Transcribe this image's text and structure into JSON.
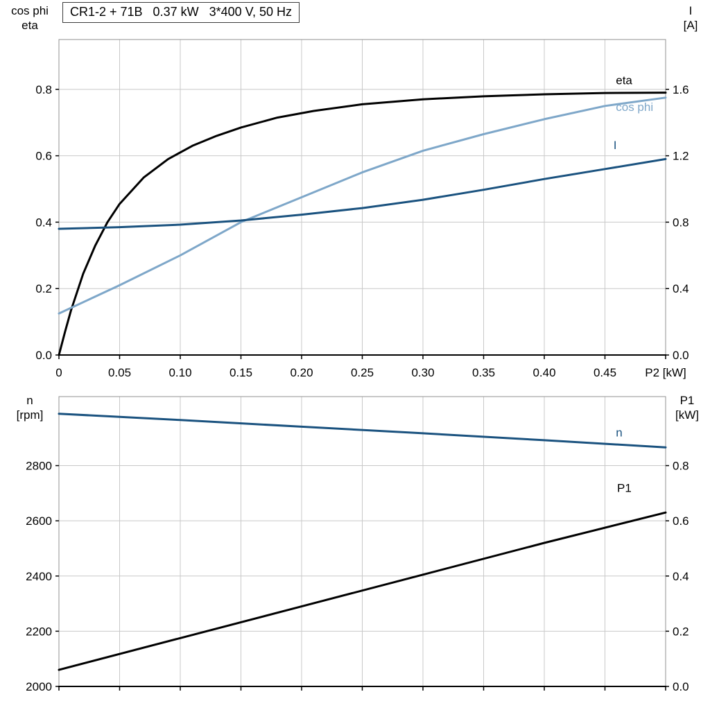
{
  "title_box": {
    "text": "CR1-2 + 71B   0.37 kW   3*400 V, 50 Hz"
  },
  "colors": {
    "black": "#000000",
    "light_blue": "#7ea7c9",
    "dark_blue": "#1a527f",
    "grid": "#c8c8c8",
    "frame": "#909090",
    "axis": "#000000"
  },
  "axis_corner_labels": {
    "top_left": [
      "cos phi",
      "eta"
    ],
    "top_right": [
      "I",
      "[A]"
    ],
    "bottom_left": [
      "n",
      "[rpm]"
    ],
    "bottom_right": [
      "P1",
      "[kW]"
    ]
  },
  "chart_data": [
    {
      "type": "line",
      "title": "CR1-2 + 71B   0.37 kW   3*400 V, 50 Hz",
      "grid": true,
      "legend_position": "end-of-line labels",
      "x_axis": {
        "label": "P2 [kW]",
        "range": [
          0,
          0.5
        ],
        "tick_values": [
          0,
          0.05,
          0.1,
          0.15,
          0.2,
          0.25,
          0.3,
          0.35,
          0.4,
          0.45,
          0.5
        ],
        "tick_labels": [
          "0",
          "0.05",
          "0.10",
          "0.15",
          "0.20",
          "0.25",
          "0.30",
          "0.35",
          "0.40",
          "0.45",
          "P2 [kW]"
        ]
      },
      "y_left": {
        "label": "cos phi / eta",
        "range": [
          0,
          0.95
        ],
        "tick_values": [
          0,
          0.2,
          0.4,
          0.6,
          0.8
        ],
        "tick_labels": [
          "0.0",
          "0.2",
          "0.4",
          "0.6",
          "0.8"
        ]
      },
      "y_right": {
        "label": "I [A]",
        "range": [
          0,
          1.9
        ],
        "tick_values": [
          0,
          0.4,
          0.8,
          1.2,
          1.6
        ],
        "tick_labels": [
          "0.0",
          "0.4",
          "0.8",
          "1.2",
          "1.6"
        ]
      },
      "series": [
        {
          "name": "eta",
          "label": "eta",
          "color": "#000000",
          "axis": "left",
          "x": [
            0,
            0.005,
            0.01,
            0.02,
            0.03,
            0.04,
            0.05,
            0.07,
            0.09,
            0.11,
            0.13,
            0.15,
            0.18,
            0.21,
            0.25,
            0.3,
            0.35,
            0.4,
            0.45,
            0.5
          ],
          "y": [
            0,
            0.07,
            0.135,
            0.245,
            0.33,
            0.4,
            0.455,
            0.535,
            0.59,
            0.63,
            0.66,
            0.685,
            0.715,
            0.735,
            0.755,
            0.77,
            0.779,
            0.785,
            0.789,
            0.79
          ],
          "label_at": [
            0.459,
            0.815
          ]
        },
        {
          "name": "cos phi",
          "label": "cos phi",
          "color": "#7ea7c9",
          "axis": "left",
          "x": [
            0,
            0.05,
            0.1,
            0.15,
            0.2,
            0.25,
            0.3,
            0.35,
            0.4,
            0.45,
            0.5
          ],
          "y": [
            0.125,
            0.21,
            0.3,
            0.4,
            0.475,
            0.55,
            0.615,
            0.665,
            0.71,
            0.75,
            0.775
          ],
          "label_at": [
            0.459,
            0.735
          ]
        },
        {
          "name": "I",
          "label": "I",
          "color": "#1a527f",
          "axis": "right",
          "x": [
            0,
            0.05,
            0.1,
            0.15,
            0.2,
            0.25,
            0.3,
            0.35,
            0.4,
            0.45,
            0.5
          ],
          "y": [
            0.76,
            0.77,
            0.785,
            0.81,
            0.845,
            0.885,
            0.935,
            0.995,
            1.06,
            1.12,
            1.18
          ],
          "label_at": [
            0.457,
            1.24
          ]
        }
      ]
    },
    {
      "type": "line",
      "title": "",
      "grid": true,
      "legend_position": "end-of-line labels",
      "x_axis": {
        "label": "",
        "range": [
          0,
          0.5
        ],
        "tick_values": [
          0,
          0.05,
          0.1,
          0.15,
          0.2,
          0.25,
          0.3,
          0.35,
          0.4,
          0.45,
          0.5
        ],
        "tick_labels": []
      },
      "y_left": {
        "label": "n [rpm]",
        "range": [
          2000,
          3050
        ],
        "tick_values": [
          2000,
          2200,
          2400,
          2600,
          2800
        ],
        "tick_labels": [
          "2000",
          "2200",
          "2400",
          "2600",
          "2800"
        ]
      },
      "y_right": {
        "label": "P1 [kW]",
        "range": [
          0,
          1.05
        ],
        "tick_values": [
          0,
          0.2,
          0.4,
          0.6,
          0.8
        ],
        "tick_labels": [
          "0.0",
          "0.2",
          "0.4",
          "0.6",
          "0.8"
        ]
      },
      "series": [
        {
          "name": "n",
          "label": "n",
          "color": "#1a527f",
          "axis": "left",
          "x": [
            0,
            0.1,
            0.2,
            0.3,
            0.4,
            0.5
          ],
          "y": [
            2988,
            2965,
            2941,
            2917,
            2892,
            2866
          ],
          "label_at": [
            0.459,
            2905
          ]
        },
        {
          "name": "P1",
          "label": "P1",
          "color": "#000000",
          "axis": "right",
          "x": [
            0,
            0.1,
            0.2,
            0.3,
            0.4,
            0.5
          ],
          "y": [
            0.06,
            0.175,
            0.29,
            0.405,
            0.52,
            0.63
          ],
          "label_at": [
            0.46,
            0.705
          ]
        }
      ]
    }
  ]
}
